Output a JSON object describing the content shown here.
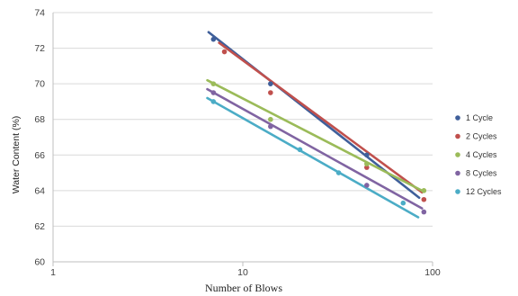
{
  "chart_data": {
    "type": "scatter",
    "title": "",
    "xlabel": "Number of Blows",
    "ylabel": "Water Content (%)",
    "xscale": "log",
    "xlim": [
      1,
      100
    ],
    "ylim": [
      60,
      74
    ],
    "x_ticks": [
      "1",
      "10",
      "100"
    ],
    "y_ticks": [
      "60",
      "62",
      "64",
      "66",
      "68",
      "70",
      "72",
      "74"
    ],
    "grid": "horizontal",
    "legend_position": "right",
    "trendlines": "logarithmic",
    "series": [
      {
        "name": "1 Cycle",
        "color": "#3F5F9A",
        "points": [
          [
            7,
            72.5
          ],
          [
            14,
            70.0
          ],
          [
            45,
            66.0
          ]
        ],
        "trend": [
          [
            6.6,
            72.9
          ],
          [
            85,
            63.6
          ]
        ]
      },
      {
        "name": "2 Cycles",
        "color": "#C0504D",
        "points": [
          [
            8,
            71.8
          ],
          [
            14,
            69.5
          ],
          [
            45,
            65.3
          ],
          [
            90,
            63.5
          ]
        ],
        "trend": [
          [
            7.5,
            72.3
          ],
          [
            88,
            63.9
          ]
        ]
      },
      {
        "name": "4 Cycles",
        "color": "#9BBB59",
        "points": [
          [
            7,
            70.0
          ],
          [
            14,
            68.0
          ],
          [
            45,
            65.5
          ],
          [
            90,
            64.0
          ]
        ],
        "trend": [
          [
            6.5,
            70.2
          ],
          [
            88,
            64.0
          ]
        ]
      },
      {
        "name": "8 Cycles",
        "color": "#8064A2",
        "points": [
          [
            7,
            69.5
          ],
          [
            14,
            67.6
          ],
          [
            45,
            64.3
          ],
          [
            90,
            62.8
          ]
        ],
        "trend": [
          [
            6.5,
            69.7
          ],
          [
            88,
            63.0
          ]
        ]
      },
      {
        "name": "12 Cycles",
        "color": "#4BACC6",
        "points": [
          [
            7,
            69.0
          ],
          [
            20,
            66.3
          ],
          [
            32,
            65.0
          ],
          [
            70,
            63.3
          ]
        ],
        "trend": [
          [
            6.5,
            69.2
          ],
          [
            84,
            62.5
          ]
        ]
      }
    ]
  }
}
